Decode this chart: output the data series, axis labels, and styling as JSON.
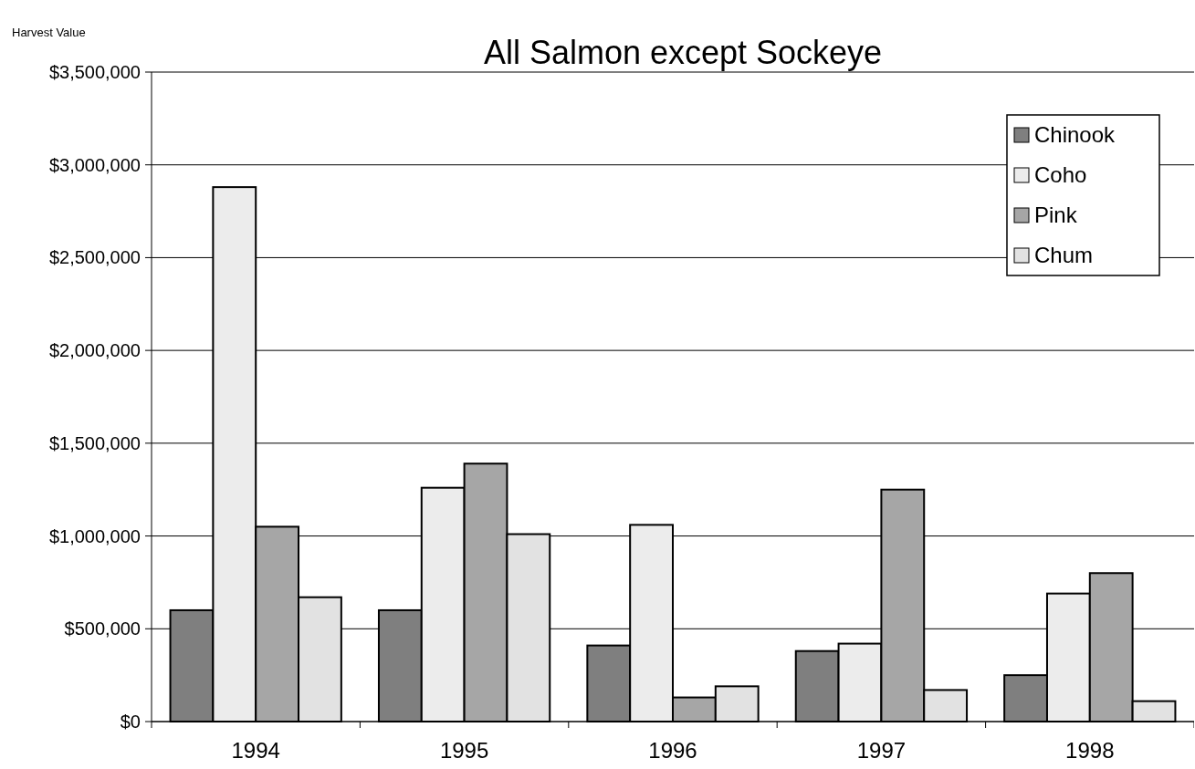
{
  "chart_data": {
    "type": "bar",
    "title": "All Salmon except Sockeye",
    "ylabel": "Harvest Value",
    "categories": [
      "1994",
      "1995",
      "1996",
      "1997",
      "1998"
    ],
    "series": [
      {
        "name": "Chinook",
        "color": "#7f7f7f",
        "values": [
          600000,
          600000,
          410000,
          380000,
          250000
        ]
      },
      {
        "name": "Coho",
        "color": "#ececec",
        "values": [
          2880000,
          1260000,
          1060000,
          420000,
          690000
        ]
      },
      {
        "name": "Pink",
        "color": "#a6a6a6",
        "values": [
          1050000,
          1390000,
          130000,
          1250000,
          800000
        ]
      },
      {
        "name": "Chum",
        "color": "#e2e2e2",
        "values": [
          670000,
          1010000,
          190000,
          170000,
          110000
        ]
      }
    ],
    "ylim": [
      0,
      3500000
    ],
    "yticks": [
      {
        "value": 0,
        "label": "$0"
      },
      {
        "value": 500000,
        "label": "$500,000"
      },
      {
        "value": 1000000,
        "label": "$1,000,000"
      },
      {
        "value": 1500000,
        "label": "$1,500,000"
      },
      {
        "value": 2000000,
        "label": "$2,000,000"
      },
      {
        "value": 2500000,
        "label": "$2,500,000"
      },
      {
        "value": 3000000,
        "label": "$3,000,000"
      },
      {
        "value": 3500000,
        "label": "$3,500,000"
      }
    ],
    "grid": "y",
    "legend": "top right"
  }
}
